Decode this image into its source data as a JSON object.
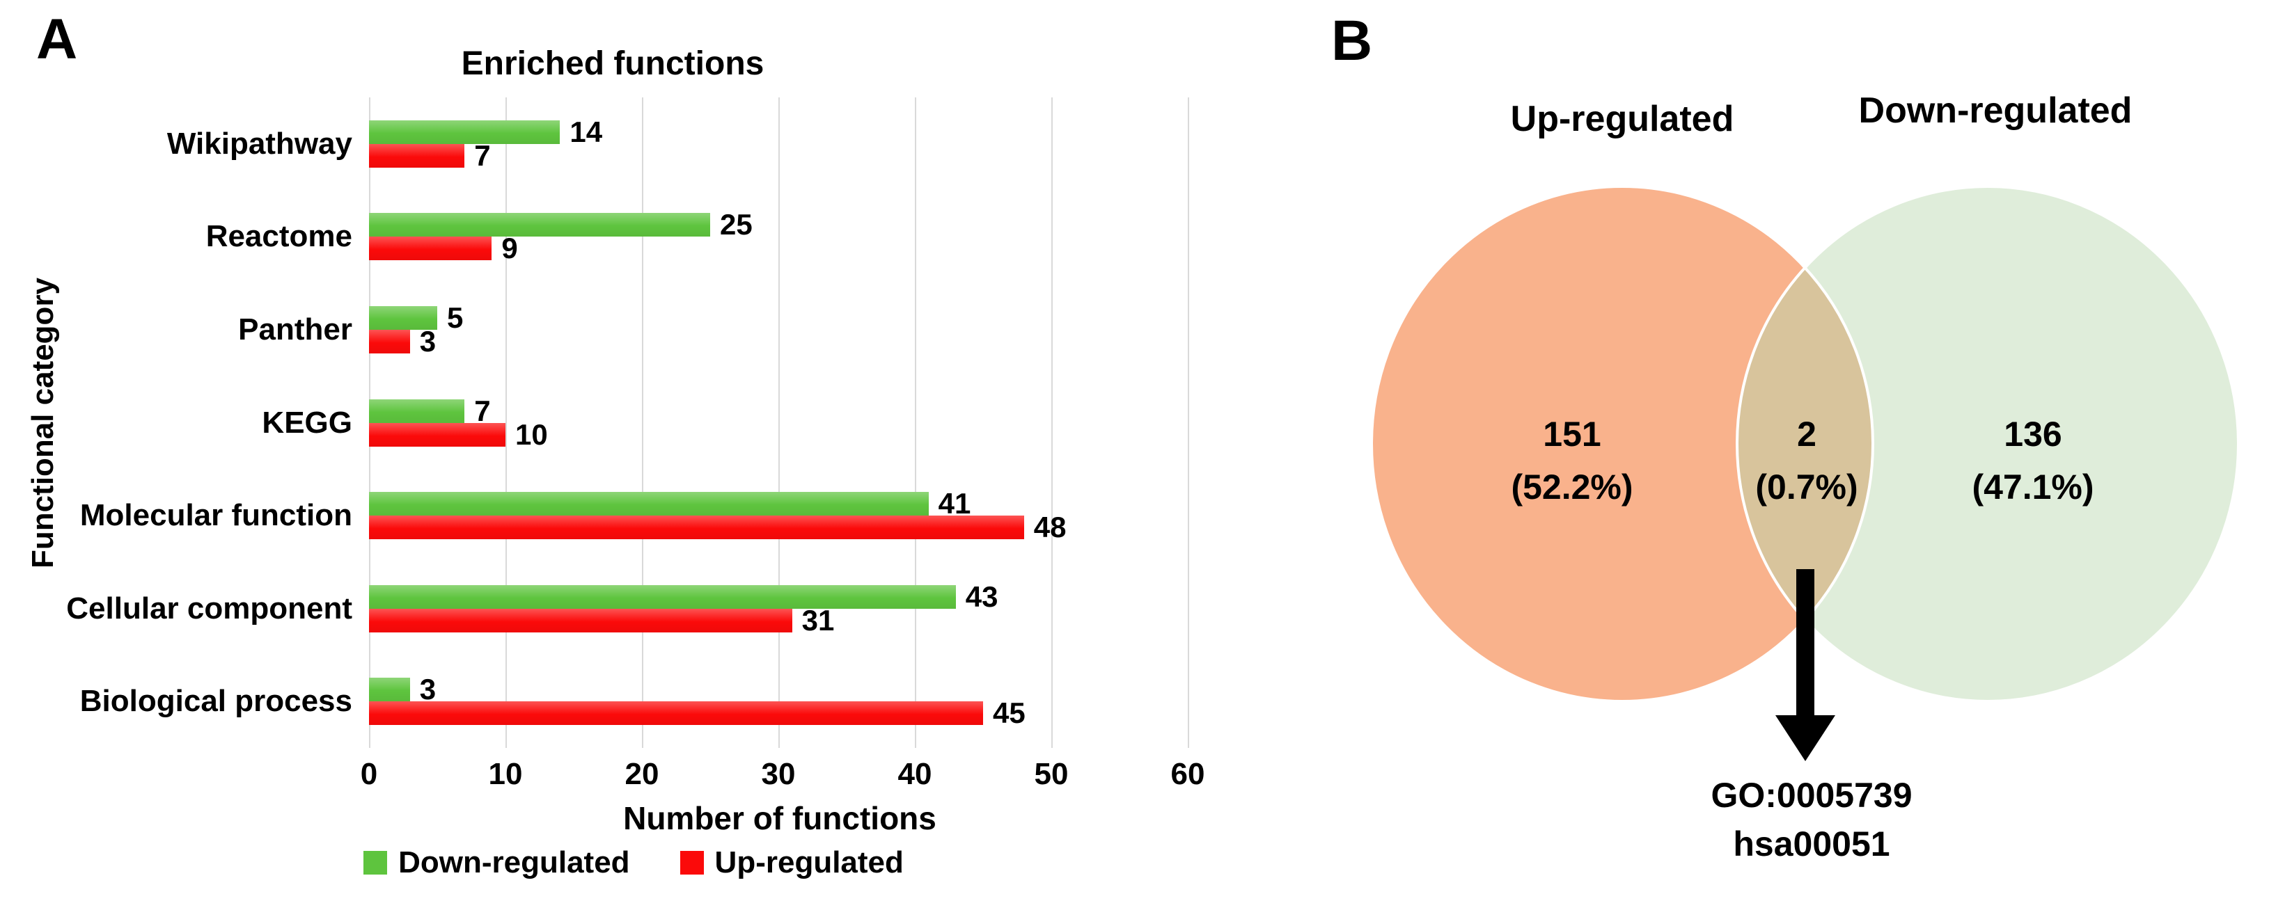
{
  "panels": {
    "a_label": "A",
    "b_label": "B"
  },
  "chart_data": {
    "type": "bar",
    "orientation": "horizontal",
    "title": "Enriched functions",
    "xlabel": "Number of functions",
    "ylabel": "Functional category",
    "categories": [
      "Wikipathway",
      "Reactome",
      "Panther",
      "KEGG",
      "Molecular function",
      "Cellular component",
      "Biological process"
    ],
    "series": [
      {
        "name": "Down-regulated",
        "color": "#5ec43e",
        "values": [
          14,
          25,
          5,
          7,
          41,
          43,
          3
        ]
      },
      {
        "name": "Up-regulated",
        "color": "#fb0a0a",
        "values": [
          7,
          9,
          3,
          10,
          48,
          31,
          45
        ]
      }
    ],
    "xlim": [
      0,
      60
    ],
    "xticks": [
      0,
      10,
      20,
      30,
      40,
      50,
      60
    ],
    "grid": "vertical",
    "gridline_color": "#d9d9d9",
    "legend_position": "bottom"
  },
  "venn": {
    "left": {
      "label": "Up-regulated",
      "count": "151",
      "percent": "(52.2%)",
      "color": "#f9b28c"
    },
    "right": {
      "label": "Down-regulated",
      "count": "136",
      "percent": "(47.1%)",
      "color": "#dfedda"
    },
    "overlap": {
      "count": "2",
      "percent": "(0.7%)",
      "color": "#d8c49c",
      "annotation_line1": "GO:0005739",
      "annotation_line2": "hsa00051"
    },
    "outline_color": "#ffffff",
    "arrow_color": "#000000"
  }
}
